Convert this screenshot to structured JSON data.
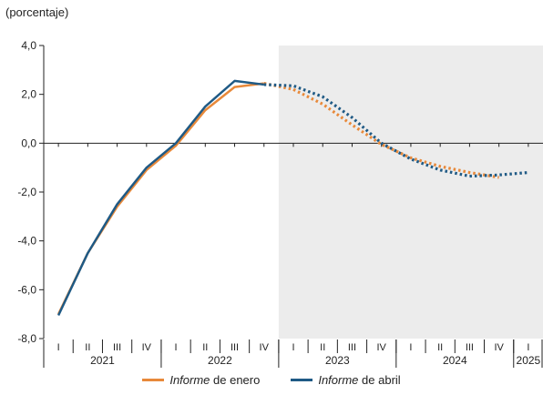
{
  "chart_data": {
    "type": "line",
    "unit_label": "(porcentaje)",
    "ylim": [
      -8,
      4
    ],
    "y_ticks": [
      "4,0",
      "2,0",
      "0,0",
      "-2,0",
      "-4,0",
      "-6,0",
      "-8,0"
    ],
    "y_tick_values": [
      4,
      2,
      0,
      -2,
      -4,
      -6,
      -8
    ],
    "quarters": [
      "I",
      "II",
      "III",
      "IV",
      "I",
      "II",
      "III",
      "IV",
      "I",
      "II",
      "III",
      "IV",
      "I",
      "II",
      "III",
      "IV",
      "I"
    ],
    "years": [
      {
        "label": "2021",
        "start": 0,
        "end": 4
      },
      {
        "label": "2022",
        "start": 4,
        "end": 8
      },
      {
        "label": "2023",
        "start": 8,
        "end": 12
      },
      {
        "label": "2024",
        "start": 12,
        "end": 16
      },
      {
        "label": "2025",
        "start": 16,
        "end": 17
      }
    ],
    "forecast_start_index": 7.5,
    "series": [
      {
        "key": "enero",
        "color": "#e8893a",
        "values": [
          -7.0,
          -4.5,
          -2.6,
          -1.1,
          -0.1,
          1.35,
          2.3,
          2.45,
          2.2,
          1.6,
          0.75,
          -0.05,
          -0.6,
          -0.95,
          -1.2,
          -1.4,
          null
        ],
        "solid_until": 7
      },
      {
        "key": "abril",
        "color": "#1f5a85",
        "values": [
          -7.05,
          -4.5,
          -2.5,
          -1.0,
          0.0,
          1.5,
          2.55,
          2.4,
          2.35,
          1.9,
          1.05,
          0.0,
          -0.65,
          -1.1,
          -1.35,
          -1.3,
          -1.2
        ],
        "solid_until": 7
      }
    ],
    "legend": [
      {
        "key": "enero",
        "italic": "Informe",
        "rest": " de enero",
        "color": "#e8893a"
      },
      {
        "key": "abril",
        "italic": "Informe",
        "rest": " de abril",
        "color": "#1f5a85"
      }
    ],
    "shading_color": "#ececec"
  }
}
